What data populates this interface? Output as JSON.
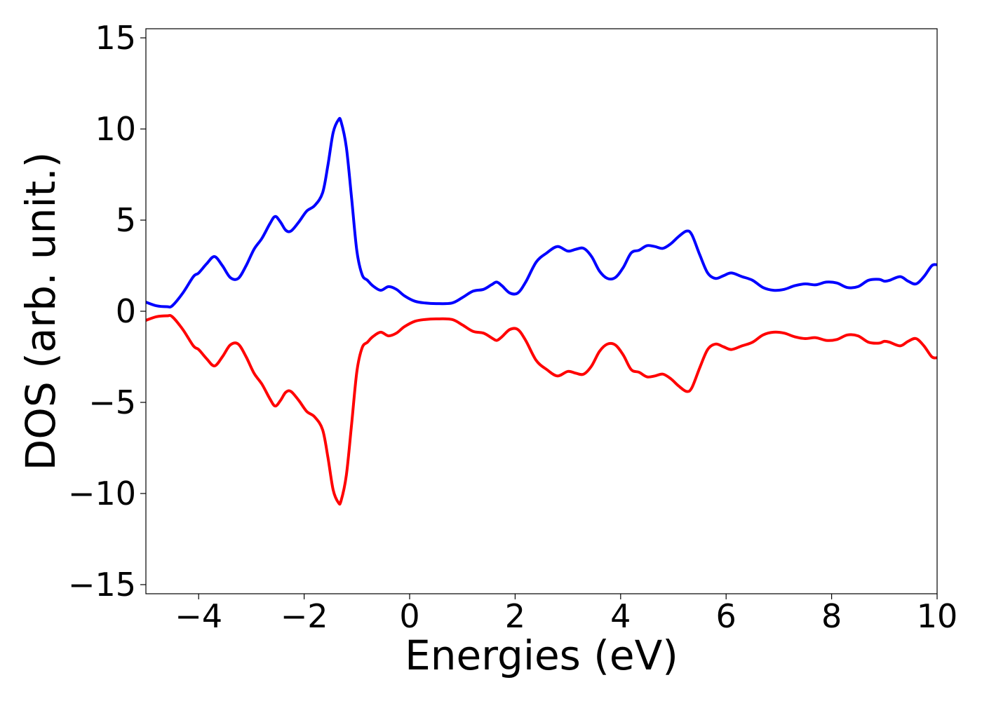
{
  "chart_data": {
    "type": "line",
    "title": "",
    "xlabel": "Energies (eV)",
    "ylabel": "DOS (arb. unit.)",
    "xlim": [
      -5,
      10
    ],
    "ylim": [
      -15.5,
      15.5
    ],
    "grid": false,
    "legend": "none",
    "x_ticks": [
      -4,
      -2,
      0,
      2,
      4,
      6,
      8,
      10
    ],
    "x_tick_labels": [
      "−4",
      "−2",
      "0",
      "2",
      "4",
      "6",
      "8",
      "10"
    ],
    "y_ticks": [
      -15,
      -10,
      -5,
      0,
      5,
      10,
      15
    ],
    "y_tick_labels": [
      "−15",
      "−10",
      "−5",
      "0",
      "5",
      "10",
      "15"
    ],
    "series": [
      {
        "color": "#0000ff",
        "x": [
          -5.0,
          -4.8,
          -4.6,
          -4.5,
          -4.3,
          -4.1,
          -4.0,
          -3.85,
          -3.7,
          -3.55,
          -3.4,
          -3.25,
          -3.1,
          -2.95,
          -2.8,
          -2.65,
          -2.55,
          -2.45,
          -2.35,
          -2.25,
          -2.1,
          -1.95,
          -1.8,
          -1.65,
          -1.55,
          -1.45,
          -1.35,
          -1.3,
          -1.2,
          -1.1,
          -1.0,
          -0.9,
          -0.8,
          -0.7,
          -0.55,
          -0.4,
          -0.25,
          -0.1,
          0.1,
          0.3,
          0.5,
          0.8,
          1.0,
          1.2,
          1.4,
          1.55,
          1.65,
          1.75,
          1.9,
          2.05,
          2.2,
          2.4,
          2.6,
          2.8,
          3.0,
          3.15,
          3.3,
          3.45,
          3.6,
          3.75,
          3.9,
          4.05,
          4.2,
          4.35,
          4.5,
          4.65,
          4.8,
          4.95,
          5.1,
          5.25,
          5.35,
          5.5,
          5.65,
          5.8,
          5.95,
          6.1,
          6.3,
          6.5,
          6.7,
          6.9,
          7.1,
          7.3,
          7.5,
          7.7,
          7.9,
          8.1,
          8.3,
          8.5,
          8.7,
          8.9,
          9.0,
          9.1,
          9.3,
          9.45,
          9.6,
          9.75,
          9.9,
          10.0
        ],
        "y": [
          0.5,
          0.3,
          0.25,
          0.3,
          1.0,
          1.9,
          2.1,
          2.6,
          3.0,
          2.5,
          1.85,
          1.8,
          2.5,
          3.4,
          4.0,
          4.8,
          5.2,
          4.9,
          4.45,
          4.4,
          4.9,
          5.5,
          5.8,
          6.5,
          8.0,
          9.8,
          10.5,
          10.4,
          9.0,
          6.2,
          3.3,
          2.0,
          1.7,
          1.4,
          1.15,
          1.35,
          1.2,
          0.85,
          0.55,
          0.45,
          0.42,
          0.45,
          0.75,
          1.1,
          1.2,
          1.45,
          1.6,
          1.4,
          1.0,
          1.0,
          1.6,
          2.7,
          3.2,
          3.55,
          3.3,
          3.4,
          3.45,
          3.0,
          2.2,
          1.8,
          1.85,
          2.4,
          3.2,
          3.35,
          3.6,
          3.55,
          3.45,
          3.7,
          4.1,
          4.4,
          4.2,
          3.1,
          2.1,
          1.8,
          1.95,
          2.1,
          1.9,
          1.7,
          1.3,
          1.15,
          1.2,
          1.4,
          1.5,
          1.45,
          1.6,
          1.55,
          1.3,
          1.35,
          1.7,
          1.75,
          1.65,
          1.7,
          1.9,
          1.65,
          1.5,
          1.9,
          2.5,
          2.55
        ]
      },
      {
        "color": "#ff0000",
        "x": [
          -5.0,
          -4.8,
          -4.6,
          -4.5,
          -4.3,
          -4.1,
          -4.0,
          -3.85,
          -3.7,
          -3.55,
          -3.4,
          -3.25,
          -3.1,
          -2.95,
          -2.8,
          -2.65,
          -2.55,
          -2.45,
          -2.35,
          -2.25,
          -2.1,
          -1.95,
          -1.8,
          -1.65,
          -1.55,
          -1.45,
          -1.35,
          -1.3,
          -1.2,
          -1.1,
          -1.0,
          -0.9,
          -0.8,
          -0.7,
          -0.55,
          -0.4,
          -0.25,
          -0.1,
          0.1,
          0.3,
          0.5,
          0.8,
          1.0,
          1.2,
          1.4,
          1.55,
          1.65,
          1.75,
          1.9,
          2.05,
          2.2,
          2.4,
          2.6,
          2.8,
          3.0,
          3.15,
          3.3,
          3.45,
          3.6,
          3.75,
          3.9,
          4.05,
          4.2,
          4.35,
          4.5,
          4.65,
          4.8,
          4.95,
          5.1,
          5.25,
          5.35,
          5.5,
          5.65,
          5.8,
          5.95,
          6.1,
          6.3,
          6.5,
          6.7,
          6.9,
          7.1,
          7.3,
          7.5,
          7.7,
          7.9,
          8.1,
          8.3,
          8.5,
          8.7,
          8.9,
          9.0,
          9.1,
          9.3,
          9.45,
          9.6,
          9.75,
          9.9,
          10.0
        ],
        "y": [
          -0.5,
          -0.3,
          -0.25,
          -0.3,
          -1.0,
          -1.9,
          -2.1,
          -2.6,
          -3.0,
          -2.5,
          -1.85,
          -1.8,
          -2.5,
          -3.4,
          -4.0,
          -4.8,
          -5.2,
          -4.9,
          -4.45,
          -4.4,
          -4.9,
          -5.5,
          -5.8,
          -6.5,
          -8.0,
          -9.8,
          -10.5,
          -10.4,
          -9.0,
          -6.2,
          -3.3,
          -2.0,
          -1.7,
          -1.4,
          -1.15,
          -1.35,
          -1.2,
          -0.85,
          -0.55,
          -0.45,
          -0.42,
          -0.45,
          -0.75,
          -1.1,
          -1.2,
          -1.45,
          -1.6,
          -1.4,
          -1.0,
          -1.0,
          -1.6,
          -2.7,
          -3.2,
          -3.55,
          -3.3,
          -3.4,
          -3.45,
          -3.0,
          -2.2,
          -1.8,
          -1.85,
          -2.4,
          -3.2,
          -3.35,
          -3.6,
          -3.55,
          -3.45,
          -3.7,
          -4.1,
          -4.4,
          -4.2,
          -3.1,
          -2.1,
          -1.8,
          -1.95,
          -2.1,
          -1.9,
          -1.7,
          -1.3,
          -1.15,
          -1.2,
          -1.4,
          -1.5,
          -1.45,
          -1.6,
          -1.55,
          -1.3,
          -1.35,
          -1.7,
          -1.75,
          -1.65,
          -1.7,
          -1.9,
          -1.65,
          -1.5,
          -1.9,
          -2.5,
          -2.55
        ]
      }
    ]
  }
}
